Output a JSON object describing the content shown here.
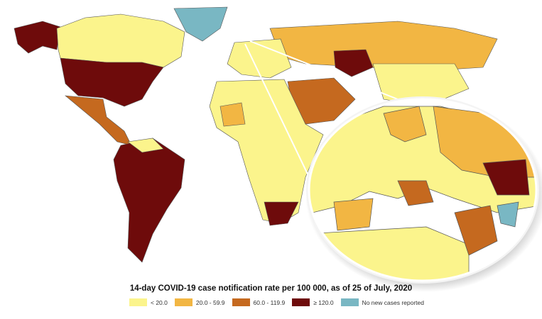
{
  "title": "14-day COVID-19 case notification rate per 100 000, as of 25 of July, 2020",
  "legend": [
    {
      "label": "< 20.0",
      "color": "#fbf48c"
    },
    {
      "label": "20.0 - 59.9",
      "color": "#f2b643"
    },
    {
      "label": "60.0 - 119.9",
      "color": "#c5691f"
    },
    {
      "label": "≥ 120.0",
      "color": "#6e0b0b"
    },
    {
      "label": "No new cases reported",
      "color": "#79b7c3"
    }
  ]
}
